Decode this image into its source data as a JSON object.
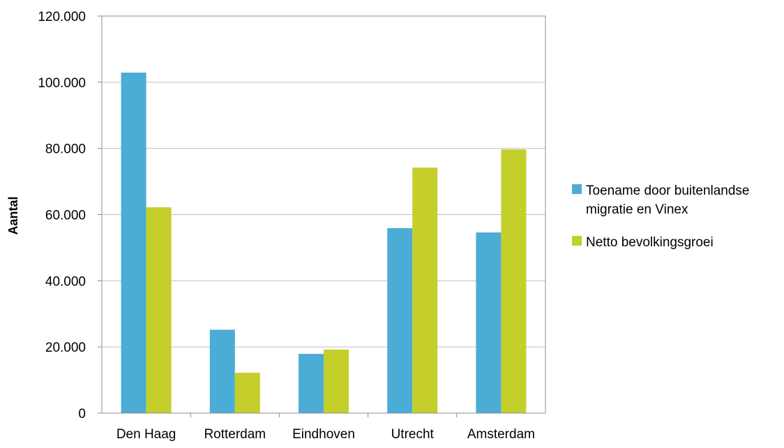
{
  "chart_data": {
    "type": "bar",
    "title": "",
    "xlabel": "",
    "ylabel": "Aantal",
    "categories": [
      "Den Haag",
      "Rotterdam",
      "Eindhoven",
      "Utrecht",
      "Amsterdam"
    ],
    "series": [
      {
        "name": "Toename door buitenlandse migratie en Vinex",
        "name_lines": [
          "Toename door buitenlandse",
          "migratie en Vinex"
        ],
        "color": "#4BACD6",
        "values": [
          102900,
          25200,
          17900,
          55900,
          54600
        ]
      },
      {
        "name": "Netto bevolkingsgroei",
        "name_lines": [
          "Netto bevolkingsgroei"
        ],
        "color": "#C4CF2B",
        "values": [
          62200,
          12200,
          19200,
          74200,
          79700
        ]
      }
    ],
    "ylim": [
      0,
      120000
    ],
    "yticks": [
      0,
      20000,
      40000,
      60000,
      80000,
      100000,
      120000
    ],
    "ytick_labels": [
      "0",
      "20.000",
      "40.000",
      "60.000",
      "80.000",
      "100.000",
      "120.000"
    ],
    "grid": true,
    "legend_position": "right",
    "gridline_color": "#BFBFBF",
    "axis_color": "#8C8C8C"
  }
}
